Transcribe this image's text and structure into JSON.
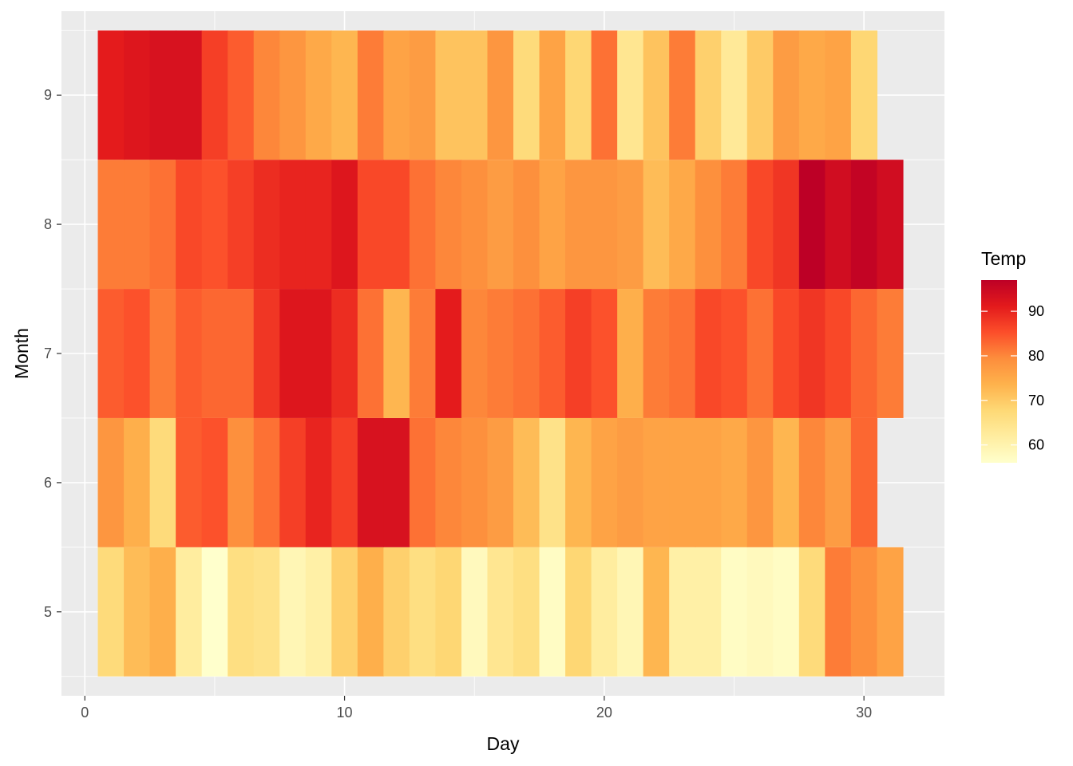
{
  "chart_data": {
    "type": "heatmap",
    "title": "",
    "xlabel": "Day",
    "ylabel": "Month",
    "xlim": [
      -0.9,
      33.1
    ],
    "ylim": [
      4.35,
      9.65
    ],
    "x_ticks": [
      0,
      10,
      20,
      30
    ],
    "y_ticks": [
      5,
      6,
      7,
      8,
      9
    ],
    "grid": true,
    "legend": {
      "title": "Temp",
      "position": "right",
      "ticks": [
        60,
        70,
        80,
        90
      ],
      "range": [
        56,
        97
      ]
    },
    "rows": [
      {
        "month": 5,
        "days": [
          1,
          2,
          3,
          4,
          5,
          6,
          7,
          8,
          9,
          10,
          11,
          12,
          13,
          14,
          15,
          16,
          17,
          18,
          19,
          20,
          21,
          22,
          23,
          24,
          25,
          26,
          27,
          28,
          29,
          30,
          31
        ],
        "temps": [
          67,
          72,
          74,
          62,
          56,
          66,
          65,
          59,
          61,
          69,
          74,
          69,
          66,
          68,
          58,
          64,
          66,
          57,
          68,
          62,
          59,
          73,
          61,
          61,
          57,
          58,
          57,
          67,
          81,
          79,
          76
        ]
      },
      {
        "month": 6,
        "days": [
          1,
          2,
          3,
          4,
          5,
          6,
          7,
          8,
          9,
          10,
          11,
          12,
          13,
          14,
          15,
          16,
          17,
          18,
          19,
          20,
          21,
          22,
          23,
          24,
          25,
          26,
          27,
          28,
          29,
          30
        ],
        "temps": [
          78,
          74,
          67,
          84,
          85,
          79,
          82,
          87,
          90,
          87,
          93,
          93,
          82,
          80,
          79,
          77,
          72,
          65,
          73,
          76,
          77,
          76,
          76,
          76,
          75,
          78,
          73,
          80,
          77,
          83
        ]
      },
      {
        "month": 7,
        "days": [
          1,
          2,
          3,
          4,
          5,
          6,
          7,
          8,
          9,
          10,
          11,
          12,
          13,
          14,
          15,
          16,
          17,
          18,
          19,
          20,
          21,
          22,
          23,
          24,
          25,
          26,
          27,
          28,
          29,
          30,
          31
        ],
        "temps": [
          84,
          85,
          81,
          84,
          83,
          83,
          88,
          92,
          92,
          89,
          82,
          73,
          81,
          91,
          80,
          81,
          82,
          84,
          87,
          85,
          74,
          81,
          82,
          86,
          85,
          82,
          86,
          88,
          86,
          83,
          81
        ]
      },
      {
        "month": 8,
        "days": [
          1,
          2,
          3,
          4,
          5,
          6,
          7,
          8,
          9,
          10,
          11,
          12,
          13,
          14,
          15,
          16,
          17,
          18,
          19,
          20,
          21,
          22,
          23,
          24,
          25,
          26,
          27,
          28,
          29,
          30,
          31
        ],
        "temps": [
          81,
          81,
          82,
          86,
          85,
          87,
          89,
          90,
          90,
          92,
          86,
          86,
          82,
          80,
          79,
          77,
          79,
          76,
          78,
          78,
          77,
          72,
          75,
          79,
          81,
          86,
          88,
          97,
          94,
          96,
          94
        ]
      },
      {
        "month": 9,
        "days": [
          1,
          2,
          3,
          4,
          5,
          6,
          7,
          8,
          9,
          10,
          11,
          12,
          13,
          14,
          15,
          16,
          17,
          18,
          19,
          20,
          21,
          22,
          23,
          24,
          25,
          26,
          27,
          28,
          29,
          30
        ],
        "temps": [
          91,
          92,
          93,
          93,
          87,
          84,
          80,
          78,
          75,
          73,
          81,
          76,
          77,
          71,
          71,
          78,
          67,
          76,
          68,
          82,
          64,
          71,
          81,
          69,
          63,
          70,
          77,
          75,
          76,
          68
        ]
      }
    ],
    "colors": {
      "panel_bg": "#EBEBEB",
      "grid_major": "#FFFFFF",
      "scale": [
        "#FFFFCC",
        "#FFEDA0",
        "#FED976",
        "#FEB24C",
        "#FD8D3C",
        "#FC4E2A",
        "#E31A1C",
        "#BD0026"
      ]
    }
  }
}
